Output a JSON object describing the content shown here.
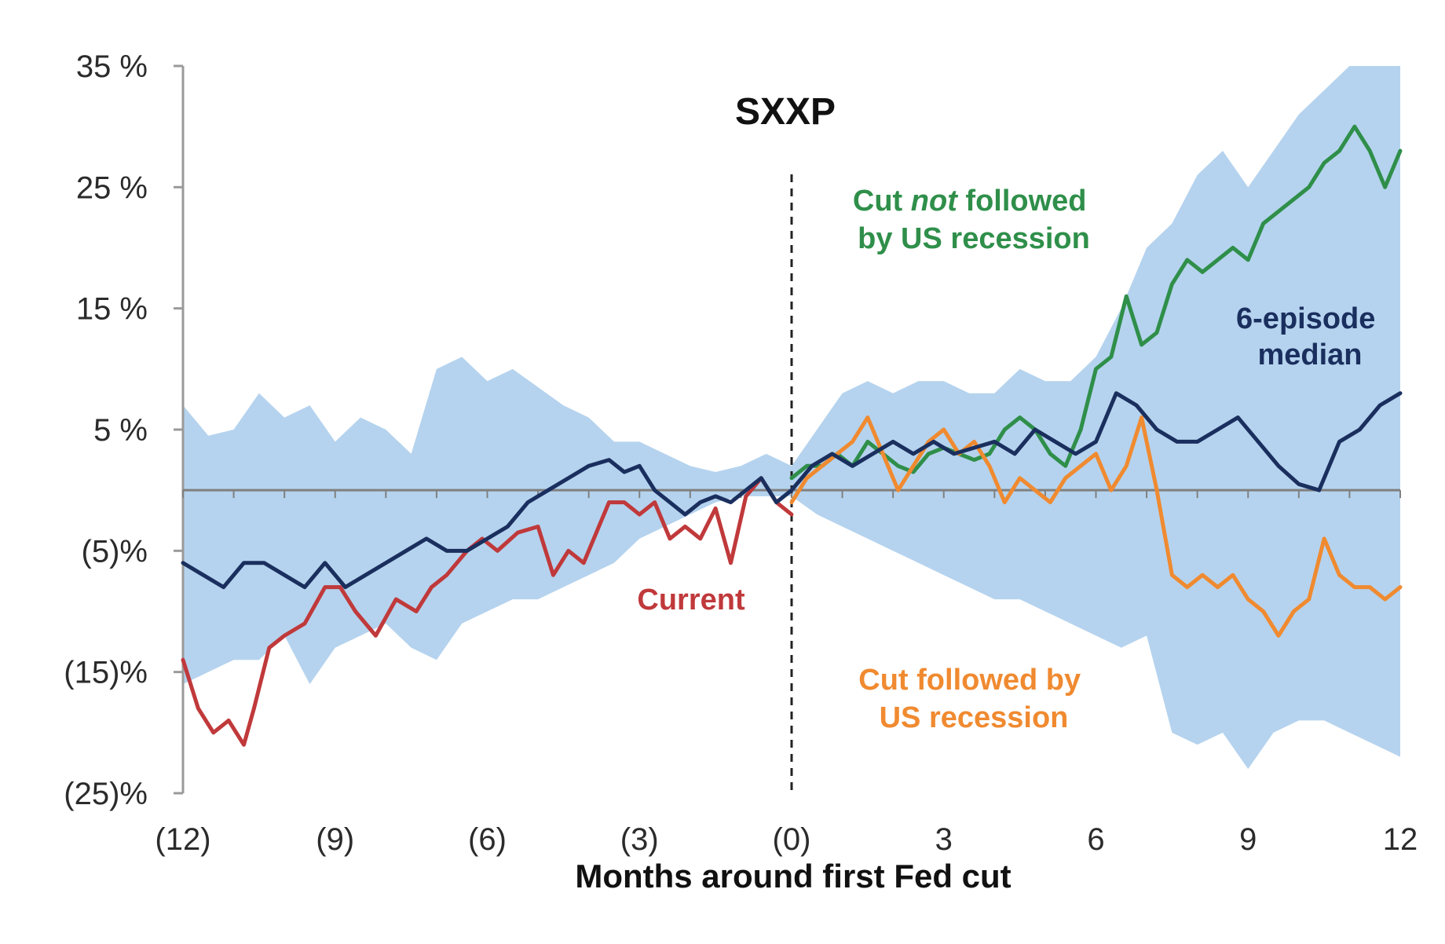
{
  "chart_data": {
    "type": "line",
    "title": "SXXP",
    "xlabel": "Months around first Fed cut",
    "ylabel": "",
    "xlim": [
      -12,
      12
    ],
    "ylim": [
      -25,
      35
    ],
    "x_ticks": [
      {
        "value": -12,
        "label": "(12)"
      },
      {
        "value": -9,
        "label": "(9)"
      },
      {
        "value": -6,
        "label": "(6)"
      },
      {
        "value": -3,
        "label": "(3)"
      },
      {
        "value": 0,
        "label": "(0)"
      },
      {
        "value": 3,
        "label": "3"
      },
      {
        "value": 6,
        "label": "6"
      },
      {
        "value": 9,
        "label": "9"
      },
      {
        "value": 12,
        "label": "12"
      }
    ],
    "y_ticks": [
      {
        "value": 35,
        "label": "35 %"
      },
      {
        "value": 25,
        "label": "25 %"
      },
      {
        "value": 15,
        "label": "15 %"
      },
      {
        "value": 5,
        "label": "5 %"
      },
      {
        "value": -5,
        "label": "(5)%"
      },
      {
        "value": -15,
        "label": "(15)%"
      },
      {
        "value": -25,
        "label": "(25)%"
      }
    ],
    "zero_line": true,
    "vertical_marker": {
      "x": 0,
      "style": "dashed"
    },
    "band": {
      "color": "#b5d3ee",
      "x": [
        -12,
        -11.5,
        -11,
        -10.5,
        -10,
        -9.5,
        -9,
        -8.5,
        -8,
        -7.5,
        -7,
        -6.5,
        -6,
        -5.5,
        -5,
        -4.5,
        -4,
        -3.5,
        -3,
        -2.5,
        -2,
        -1.5,
        -1,
        -0.5,
        0,
        0.5,
        1,
        1.5,
        2,
        2.5,
        3,
        3.5,
        4,
        4.5,
        5,
        5.5,
        6,
        6.5,
        7,
        7.5,
        8,
        8.5,
        9,
        9.5,
        10,
        10.5,
        11,
        11.5,
        12
      ],
      "upper": [
        7,
        4.5,
        5,
        8,
        6,
        7,
        4,
        6,
        5,
        3,
        10,
        11,
        9,
        10,
        8.5,
        7,
        6,
        4,
        4,
        3,
        2,
        1.5,
        2,
        3,
        2,
        5,
        8,
        9,
        8,
        9,
        9,
        8,
        8,
        10,
        9,
        9,
        11,
        15,
        20,
        22,
        26,
        28,
        25,
        28,
        31,
        33,
        35,
        35,
        35
      ],
      "lower": [
        -16,
        -15,
        -14,
        -14,
        -12,
        -16,
        -13,
        -12,
        -11,
        -13,
        -14,
        -11,
        -10,
        -9,
        -9,
        -8,
        -7,
        -6,
        -4,
        -3,
        -2,
        -1,
        -0.5,
        -0.5,
        -0.5,
        -2,
        -3,
        -4,
        -5,
        -6,
        -7,
        -8,
        -9,
        -9,
        -10,
        -11,
        -12,
        -13,
        -12,
        -20,
        -21,
        -20,
        -23,
        -20,
        -19,
        -19,
        -20,
        -21,
        -22
      ]
    },
    "series": [
      {
        "name": "Current",
        "color": "#c0393b",
        "x": [
          -12,
          -11.7,
          -11.4,
          -11.1,
          -10.8,
          -10.6,
          -10.3,
          -10,
          -9.6,
          -9.2,
          -8.9,
          -8.6,
          -8.2,
          -7.8,
          -7.4,
          -7.1,
          -6.8,
          -6.4,
          -6.1,
          -5.8,
          -5.4,
          -5,
          -4.7,
          -4.4,
          -4.1,
          -3.8,
          -3.6,
          -3.3,
          -3,
          -2.7,
          -2.4,
          -2.1,
          -1.8,
          -1.5,
          -1.2,
          -0.9,
          -0.6,
          -0.3,
          0
        ],
        "y": [
          -14,
          -18,
          -20,
          -19,
          -21,
          -18,
          -13,
          -12,
          -11,
          -8,
          -8,
          -10,
          -12,
          -9,
          -10,
          -8,
          -7,
          -5,
          -4,
          -5,
          -3.5,
          -3,
          -7,
          -5,
          -6,
          -3,
          -1,
          -1,
          -2,
          -1,
          -4,
          -3,
          -4,
          -1.5,
          -6,
          -0.5,
          1,
          -1,
          -2
        ]
      },
      {
        "name": "Cut not followed by US recession",
        "color": "#2f8f4a",
        "x": [
          0,
          0.3,
          0.6,
          0.9,
          1.2,
          1.5,
          1.8,
          2.1,
          2.4,
          2.7,
          3,
          3.3,
          3.6,
          3.9,
          4.2,
          4.5,
          4.8,
          5.1,
          5.4,
          5.7,
          6,
          6.3,
          6.6,
          6.9,
          7.2,
          7.5,
          7.8,
          8.1,
          8.4,
          8.7,
          9,
          9.3,
          9.6,
          9.9,
          10.2,
          10.5,
          10.8,
          11.1,
          11.4,
          11.7,
          12
        ],
        "y": [
          1,
          2,
          2,
          3,
          2,
          4,
          3,
          2,
          1.5,
          3,
          3.5,
          3,
          2.5,
          3,
          5,
          6,
          5,
          3,
          2,
          5,
          10,
          11,
          16,
          12,
          13,
          17,
          19,
          18,
          19,
          20,
          19,
          22,
          23,
          24,
          25,
          27,
          28,
          30,
          28,
          25,
          28
        ]
      },
      {
        "name": "Cut followed by US recession",
        "color": "#f08a30",
        "x": [
          0,
          0.3,
          0.6,
          0.9,
          1.2,
          1.5,
          1.8,
          2.1,
          2.4,
          2.7,
          3,
          3.3,
          3.6,
          3.9,
          4.2,
          4.5,
          4.8,
          5.1,
          5.4,
          5.7,
          6,
          6.3,
          6.6,
          6.9,
          7.2,
          7.5,
          7.8,
          8.1,
          8.4,
          8.7,
          9,
          9.3,
          9.6,
          9.9,
          10.2,
          10.5,
          10.8,
          11.1,
          11.4,
          11.7,
          12
        ],
        "y": [
          -1,
          1,
          2,
          3,
          4,
          6,
          3,
          0,
          2,
          4,
          5,
          3,
          4,
          2,
          -1,
          1,
          0,
          -1,
          1,
          2,
          3,
          0,
          2,
          6,
          0,
          -7,
          -8,
          -7,
          -8,
          -7,
          -9,
          -10,
          -12,
          -10,
          -9,
          -4,
          -7,
          -8,
          -8,
          -9,
          -8
        ]
      },
      {
        "name": "6-episode median",
        "color": "#1a2f5e",
        "x": [
          -12,
          -11.6,
          -11.2,
          -10.8,
          -10.4,
          -10,
          -9.6,
          -9.2,
          -8.8,
          -8.4,
          -8,
          -7.6,
          -7.2,
          -6.8,
          -6.4,
          -6,
          -5.6,
          -5.2,
          -4.8,
          -4.4,
          -4,
          -3.6,
          -3.3,
          -3,
          -2.7,
          -2.4,
          -2.1,
          -1.8,
          -1.5,
          -1.2,
          -0.9,
          -0.6,
          -0.3,
          0,
          0.4,
          0.8,
          1.2,
          1.6,
          2,
          2.4,
          2.8,
          3.2,
          3.6,
          4,
          4.4,
          4.8,
          5.2,
          5.6,
          6,
          6.4,
          6.8,
          7.2,
          7.6,
          8,
          8.4,
          8.8,
          9.2,
          9.6,
          10,
          10.4,
          10.8,
          11.2,
          11.6,
          12
        ],
        "y": [
          -6,
          -7,
          -8,
          -6,
          -6,
          -7,
          -8,
          -6,
          -8,
          -7,
          -6,
          -5,
          -4,
          -5,
          -5,
          -4,
          -3,
          -1,
          0,
          1,
          2,
          2.5,
          1.5,
          2,
          0,
          -1,
          -2,
          -1,
          -0.5,
          -1,
          0,
          1,
          -1,
          0,
          2,
          3,
          2,
          3,
          4,
          3,
          4,
          3,
          3.5,
          4,
          3,
          5,
          4,
          3,
          4,
          8,
          7,
          5,
          4,
          4,
          5,
          6,
          4,
          2,
          0.5,
          0,
          4,
          5,
          7,
          8
        ]
      }
    ],
    "annotations": [
      {
        "text": "Current",
        "color": "#c0393b"
      },
      {
        "text_lines": [
          "Cut not followed",
          "by US recession"
        ],
        "italic_word": "not",
        "color": "#2f8f4a"
      },
      {
        "text_lines": [
          "6-episode",
          "median"
        ],
        "color": "#1a2f5e"
      },
      {
        "text_lines": [
          "Cut followed by",
          "US recession"
        ],
        "color": "#f08a30"
      }
    ]
  }
}
